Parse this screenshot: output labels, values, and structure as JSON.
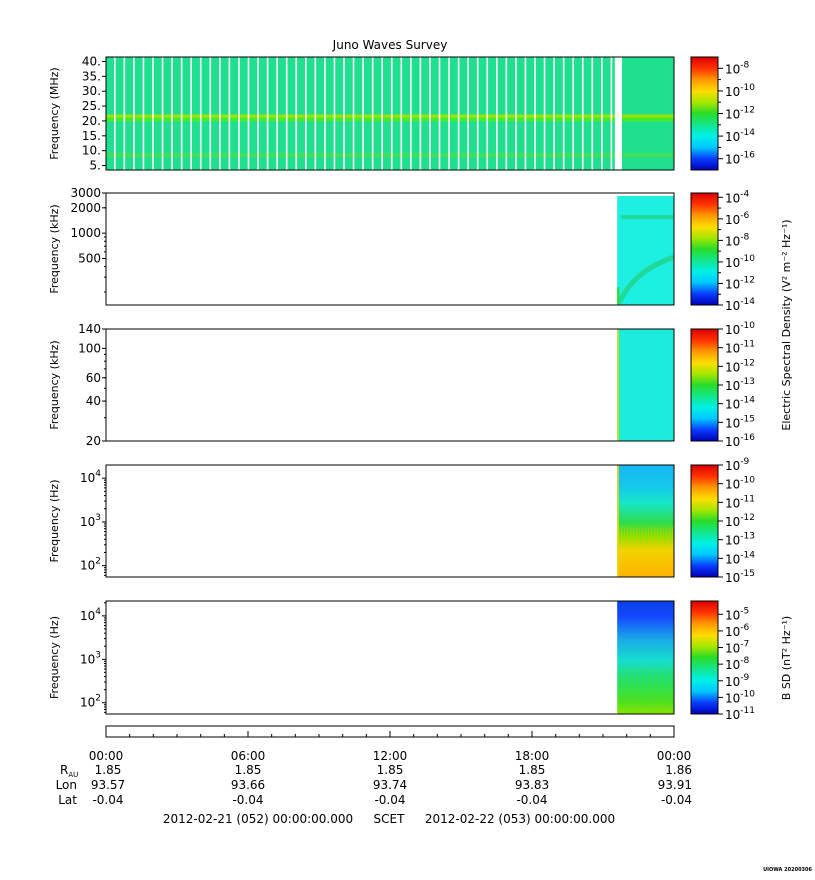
{
  "chart_data": {
    "type": "heatmap",
    "title": "Juno Waves Survey",
    "panels": [
      {
        "id": "hfr-high",
        "ylabel": "Frequency (MHz)",
        "yscale": "linear",
        "ylim": [
          3.5,
          41.5
        ],
        "yticks": [
          5,
          10,
          15,
          20,
          25,
          30,
          35,
          40
        ],
        "ytick_labels": [
          "5.",
          "10.",
          "15.",
          "20.",
          "25.",
          "30.",
          "35.",
          "40."
        ],
        "data_start_hour": 0.0,
        "gap_start_hour": 21.5,
        "gap_end_hour": 21.8,
        "background_color": "#1fe08e",
        "emission_bands": [
          {
            "freq": 21.5,
            "color": "#9ce400"
          },
          {
            "freq": 20.5,
            "color": "#44ec2c"
          },
          {
            "freq": 8.5,
            "color": "#3fe05a"
          }
        ],
        "colorbar": {
          "log_min": -17,
          "log_max": -7,
          "labeled_exponents": [
            -8,
            -10,
            -12,
            -14,
            -16
          ],
          "minor_exponents": [
            -9,
            -11,
            -13,
            -15
          ]
        }
      },
      {
        "id": "hfr-low",
        "ylabel": "Frequency (kHz)",
        "yscale": "log",
        "ylim": [
          140,
          3000
        ],
        "yticks": [
          500,
          1000,
          2000,
          3000
        ],
        "ytick_labels": [
          "500",
          "1000",
          "2000",
          "3000"
        ],
        "data_start_hour": 21.6,
        "background_color": "#1df0e0",
        "emission_bands": [
          {
            "freq": 1550,
            "color": "#21d89e"
          }
        ],
        "colorbar": {
          "log_min": -14,
          "log_max": -3.6,
          "labeled_exponents": [
            -4,
            -6,
            -8,
            -10,
            -12,
            -14
          ],
          "minor_exponents": [
            -5,
            -7,
            -9,
            -11,
            -13
          ]
        }
      },
      {
        "id": "lfr-high",
        "ylabel": "Frequency (kHz)",
        "yscale": "log",
        "ylim": [
          20,
          140
        ],
        "yticks": [
          20,
          40,
          60,
          100,
          140
        ],
        "ytick_labels": [
          "20",
          "40",
          "60",
          "100",
          "140"
        ],
        "data_start_hour": 21.6,
        "background_color": "#1cecdc",
        "colorbar": {
          "log_min": -16,
          "log_max": -10,
          "labeled_exponents": [
            -10,
            -11,
            -12,
            -13,
            -14,
            -15,
            -16
          ],
          "minor_exponents": []
        }
      },
      {
        "id": "lfr-low",
        "ylabel": "Frequency (Hz)",
        "yscale": "log",
        "ylim": [
          55,
          20000
        ],
        "yticks": [
          100,
          1000,
          10000
        ],
        "ytick_exponents": [
          2,
          3,
          4
        ],
        "data_start_hour": 21.6,
        "colorbar": {
          "log_min": -15,
          "log_max": -9,
          "labeled_exponents": [
            -9,
            -10,
            -11,
            -12,
            -13,
            -14,
            -15
          ],
          "minor_exponents": []
        }
      },
      {
        "id": "magnetic",
        "ylabel": "Frequency (Hz)",
        "yscale": "log",
        "ylim": [
          55,
          22000
        ],
        "yticks": [
          100,
          1000,
          10000
        ],
        "ytick_exponents": [
          2,
          3,
          4
        ],
        "data_start_hour": 21.6,
        "colorbar": {
          "log_min": -11,
          "log_max": -4.2,
          "labeled_exponents": [
            -5,
            -6,
            -7,
            -8,
            -9,
            -10,
            -11
          ],
          "minor_exponents": []
        }
      }
    ],
    "colorbar_labels": {
      "electric": "Electric Spectral Density (V² m⁻² Hz⁻¹)",
      "magnetic": "B SD (nT² Hz⁻¹)"
    },
    "colorscale": [
      "#0000b4",
      "#0a3cff",
      "#00c8ff",
      "#00f0e6",
      "#14e68c",
      "#28dc28",
      "#aae600",
      "#ffdc00",
      "#ff9600",
      "#ff3200",
      "#dc0000"
    ],
    "x": {
      "range_hours": [
        0,
        24
      ],
      "tick_hours": [
        0,
        6,
        12,
        18,
        24
      ],
      "tick_labels": [
        "00:00",
        "06:00",
        "12:00",
        "18:00",
        "00:00"
      ]
    },
    "ephemeris": [
      {
        "label": "R",
        "label_sub": "AU",
        "values": [
          "1.85",
          "1.85",
          "1.85",
          "1.85",
          "1.86"
        ]
      },
      {
        "label": "Lon",
        "values": [
          "93.57",
          "93.66",
          "93.74",
          "93.83",
          "93.91"
        ]
      },
      {
        "label": "Lat",
        "values": [
          "-0.04",
          "-0.04",
          "-0.04",
          "-0.04",
          "-0.04"
        ]
      }
    ],
    "footer": {
      "start": "2012-02-21 (052) 00:00:00.000",
      "scet": "SCET",
      "end": "2012-02-22 (053) 00:00:00.000"
    },
    "stamp": "UIOWA 20200306"
  }
}
